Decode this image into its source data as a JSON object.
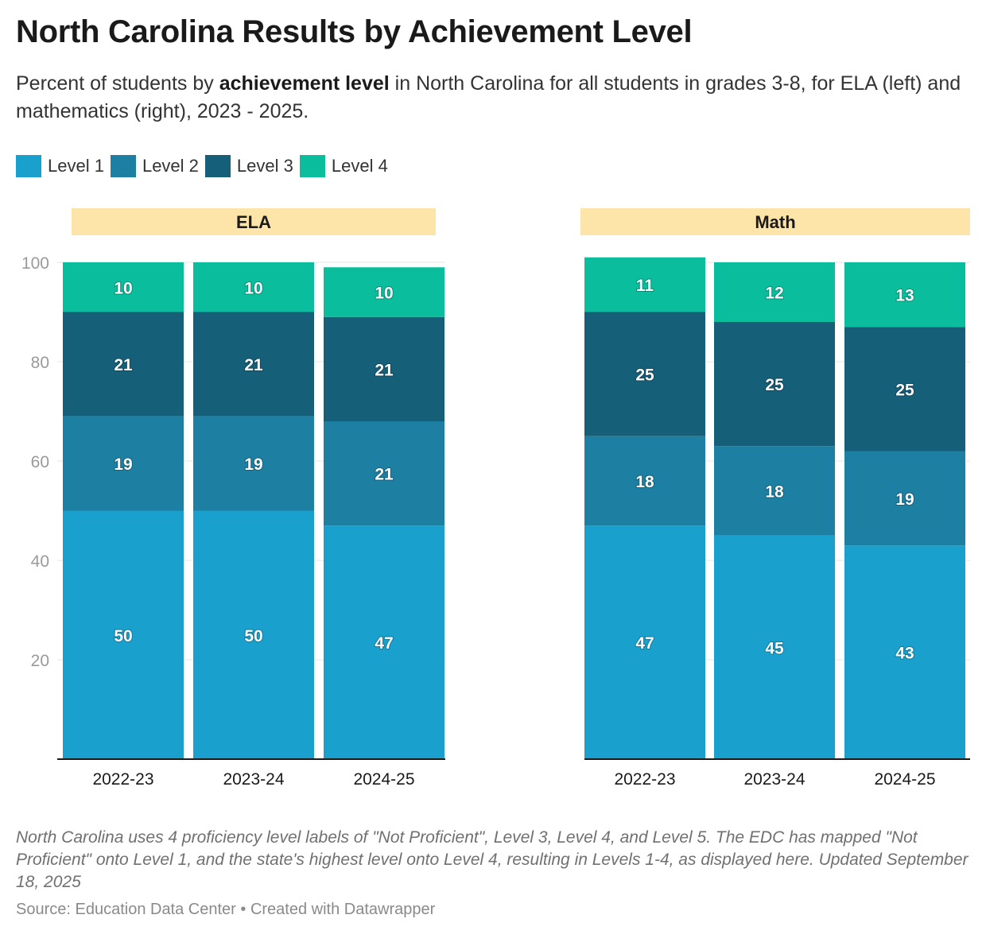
{
  "title": "North Carolina Results by Achievement Level",
  "subtitle": {
    "part1": "Percent of students by ",
    "bold": "achievement level",
    "part2": " in North Carolina for all students in grades 3-8, for ELA (left) and mathematics (right), 2023 - 2025."
  },
  "legend": [
    {
      "label": "Level 1",
      "color": "#1aa0cd"
    },
    {
      "label": "Level 2",
      "color": "#1d7fa2"
    },
    {
      "label": "Level 3",
      "color": "#165f79"
    },
    {
      "label": "Level 4",
      "color": "#0abd9d"
    }
  ],
  "panel_header_color": "#fde4a8",
  "chart_data": [
    {
      "type": "bar",
      "stacked": true,
      "title": "ELA",
      "categories": [
        "2022-23",
        "2023-24",
        "2024-25"
      ],
      "series": [
        {
          "name": "Level 1",
          "values": [
            50,
            50,
            47
          ]
        },
        {
          "name": "Level 2",
          "values": [
            19,
            19,
            21
          ]
        },
        {
          "name": "Level 3",
          "values": [
            21,
            21,
            21
          ]
        },
        {
          "name": "Level 4",
          "values": [
            10,
            10,
            10
          ]
        }
      ],
      "yticks": [
        20,
        40,
        60,
        80,
        100
      ],
      "ylim": [
        0,
        100
      ]
    },
    {
      "type": "bar",
      "stacked": true,
      "title": "Math",
      "categories": [
        "2022-23",
        "2023-24",
        "2024-25"
      ],
      "series": [
        {
          "name": "Level 1",
          "values": [
            47,
            45,
            43
          ]
        },
        {
          "name": "Level 2",
          "values": [
            18,
            18,
            19
          ]
        },
        {
          "name": "Level 3",
          "values": [
            25,
            25,
            25
          ]
        },
        {
          "name": "Level 4",
          "values": [
            11,
            12,
            13
          ]
        }
      ],
      "ylim": [
        0,
        100
      ]
    }
  ],
  "notes": "North Carolina uses 4 proficiency level labels of \"Not Proficient\", Level 3, Level 4, and Level 5. The EDC has mapped \"Not Proficient\" onto Level 1, and the state's highest level onto Level 4, resulting in Levels 1-4, as displayed here. Updated September 18, 2025",
  "source": "Source: Education Data Center • Created with Datawrapper"
}
